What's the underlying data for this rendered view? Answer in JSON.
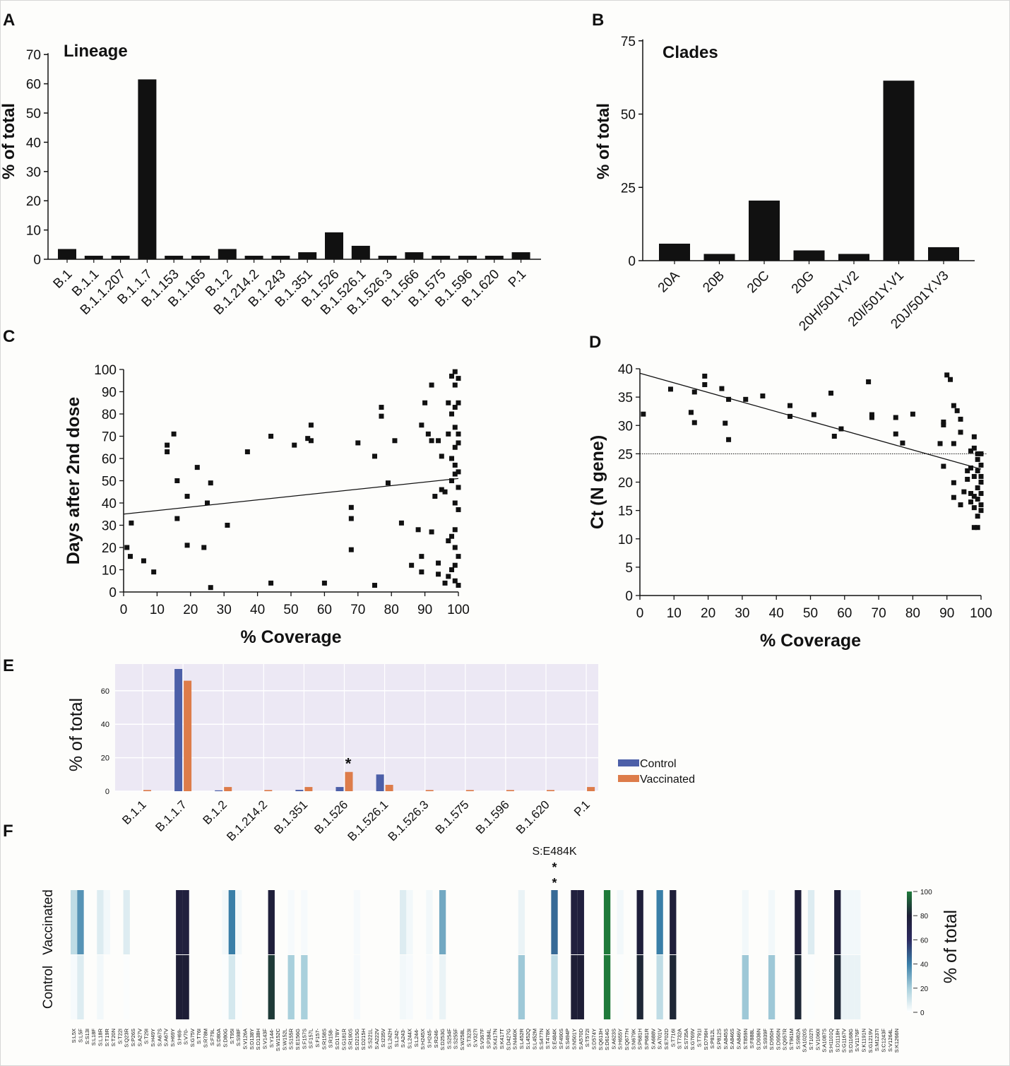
{
  "panels": {
    "a": "A",
    "b": "B",
    "c": "C",
    "d": "D",
    "e": "E",
    "f": "F"
  },
  "chart_data": [
    {
      "id": "A",
      "type": "bar",
      "title": "Lineage",
      "ylabel": "% of total",
      "xlabel": "",
      "ylim": [
        0,
        70
      ],
      "yticks": [
        0,
        10,
        20,
        30,
        40,
        50,
        60,
        70
      ],
      "grid": false,
      "categories": [
        "B.1",
        "B.1.1",
        "B.1.1.207",
        "B.1.1.7",
        "B.1.153",
        "B.1.165",
        "B.1.2",
        "B.1.214.2",
        "B.1.243",
        "B.1.351",
        "B.1.526",
        "B.1.526.1",
        "B.1.526.3",
        "B.1.566",
        "B.1.575",
        "B.1.596",
        "B.1.620",
        "P.1"
      ],
      "values": [
        3.5,
        1.2,
        1.2,
        61.5,
        1.2,
        1.2,
        3.5,
        1.2,
        1.2,
        2.4,
        9.2,
        4.6,
        1.2,
        2.4,
        1.2,
        1.2,
        1.2,
        2.4
      ],
      "color": "#111111"
    },
    {
      "id": "B",
      "type": "bar",
      "title": "Clades",
      "ylabel": "% of total",
      "xlabel": "",
      "ylim": [
        0,
        75
      ],
      "yticks": [
        0,
        25,
        50,
        75
      ],
      "grid": false,
      "categories": [
        "20A",
        "20B",
        "20C",
        "20G",
        "20H/501Y.V2",
        "20I/501Y.V1",
        "20J/501Y.V3"
      ],
      "values": [
        5.8,
        2.3,
        20.5,
        3.5,
        2.3,
        61.4,
        4.6
      ],
      "color": "#111111"
    },
    {
      "id": "C",
      "type": "scatter",
      "xlabel": "% Coverage",
      "ylabel": "Days after 2nd dose",
      "xlim": [
        0,
        100
      ],
      "ylim": [
        0,
        100
      ],
      "xticks": [
        0,
        10,
        20,
        30,
        40,
        50,
        60,
        70,
        80,
        90,
        100
      ],
      "yticks": [
        0,
        10,
        20,
        30,
        40,
        50,
        60,
        70,
        80,
        90,
        100
      ],
      "trendline": [
        [
          0,
          35
        ],
        [
          100,
          51
        ]
      ],
      "points": [
        [
          1,
          20
        ],
        [
          2,
          16
        ],
        [
          2.3,
          31
        ],
        [
          6,
          14
        ],
        [
          9,
          9
        ],
        [
          13,
          66
        ],
        [
          13,
          63
        ],
        [
          15,
          71
        ],
        [
          16,
          50
        ],
        [
          16,
          33
        ],
        [
          19,
          43
        ],
        [
          19,
          21
        ],
        [
          22,
          56
        ],
        [
          24,
          20
        ],
        [
          25,
          40
        ],
        [
          26,
          49
        ],
        [
          26,
          2
        ],
        [
          31,
          30
        ],
        [
          37,
          63
        ],
        [
          44,
          70
        ],
        [
          44,
          4
        ],
        [
          51,
          66
        ],
        [
          55,
          69
        ],
        [
          56,
          75
        ],
        [
          56,
          68
        ],
        [
          60,
          4
        ],
        [
          68,
          33
        ],
        [
          68,
          38
        ],
        [
          68,
          19
        ],
        [
          70,
          67
        ],
        [
          75,
          61
        ],
        [
          75,
          3
        ],
        [
          77,
          83
        ],
        [
          77,
          79
        ],
        [
          79,
          49
        ],
        [
          81,
          68
        ],
        [
          83,
          31
        ],
        [
          86,
          12
        ],
        [
          88,
          28
        ],
        [
          89,
          75
        ],
        [
          89,
          16
        ],
        [
          89,
          9
        ],
        [
          90,
          85
        ],
        [
          91,
          71
        ],
        [
          92,
          68
        ],
        [
          92,
          27
        ],
        [
          92,
          93
        ],
        [
          93,
          43
        ],
        [
          94,
          8
        ],
        [
          94,
          68
        ],
        [
          94,
          13
        ],
        [
          95,
          46
        ],
        [
          95,
          61
        ],
        [
          96,
          45
        ],
        [
          96,
          4
        ],
        [
          97,
          85
        ],
        [
          97,
          71
        ],
        [
          97,
          23
        ],
        [
          97,
          7
        ],
        [
          98,
          97
        ],
        [
          98,
          80
        ],
        [
          98,
          60
        ],
        [
          98,
          50
        ],
        [
          98,
          25
        ],
        [
          98,
          10
        ],
        [
          99,
          99
        ],
        [
          99,
          93
        ],
        [
          99,
          83
        ],
        [
          99,
          74
        ],
        [
          99,
          65
        ],
        [
          99,
          57
        ],
        [
          99,
          53
        ],
        [
          99,
          40
        ],
        [
          99,
          28
        ],
        [
          99,
          20
        ],
        [
          99,
          12
        ],
        [
          99,
          5
        ],
        [
          100,
          96
        ],
        [
          100,
          85
        ],
        [
          100,
          71
        ],
        [
          100,
          67
        ],
        [
          100,
          54
        ],
        [
          100,
          47
        ],
        [
          100,
          37
        ],
        [
          100,
          16
        ],
        [
          100,
          3
        ]
      ]
    },
    {
      "id": "D",
      "type": "scatter",
      "xlabel": "% Coverage",
      "ylabel": "Ct (N gene)",
      "xlim": [
        0,
        100
      ],
      "ylim": [
        0,
        40
      ],
      "xticks": [
        0,
        10,
        20,
        30,
        40,
        50,
        60,
        70,
        80,
        90,
        100
      ],
      "yticks": [
        0,
        5,
        10,
        15,
        20,
        25,
        30,
        35,
        40
      ],
      "trendline": [
        [
          0,
          39.2
        ],
        [
          100,
          22.3
        ]
      ],
      "reference_line": 25,
      "points": [
        [
          1,
          32
        ],
        [
          9,
          36.4
        ],
        [
          15,
          32.3
        ],
        [
          16,
          30.5
        ],
        [
          16,
          35.9
        ],
        [
          19,
          38.7
        ],
        [
          19,
          37.2
        ],
        [
          24,
          36.5
        ],
        [
          25,
          30.4
        ],
        [
          26,
          34.6
        ],
        [
          26,
          27.5
        ],
        [
          31,
          34.6
        ],
        [
          36,
          35.2
        ],
        [
          44,
          33.5
        ],
        [
          44,
          31.6
        ],
        [
          51,
          31.9
        ],
        [
          56,
          35.7
        ],
        [
          57,
          28.1
        ],
        [
          59,
          29.4
        ],
        [
          67,
          37.7
        ],
        [
          68,
          31.9
        ],
        [
          68,
          31.4
        ],
        [
          75,
          31.4
        ],
        [
          75,
          28.5
        ],
        [
          77,
          26.9
        ],
        [
          80,
          32
        ],
        [
          88,
          26.8
        ],
        [
          89,
          30.6
        ],
        [
          89,
          30.1
        ],
        [
          89,
          22.8
        ],
        [
          90,
          38.9
        ],
        [
          91,
          38.1
        ],
        [
          92,
          26.8
        ],
        [
          92,
          19.9
        ],
        [
          92,
          17.3
        ],
        [
          92,
          33.5
        ],
        [
          93,
          32.6
        ],
        [
          94,
          28.8
        ],
        [
          94,
          16
        ],
        [
          94,
          31.1
        ],
        [
          95,
          18.3
        ],
        [
          96,
          22
        ],
        [
          96,
          20.5
        ],
        [
          97,
          25.5
        ],
        [
          97,
          22.5
        ],
        [
          97,
          18
        ],
        [
          97,
          16.5
        ],
        [
          98,
          28
        ],
        [
          98,
          26
        ],
        [
          98,
          21
        ],
        [
          98,
          17.5
        ],
        [
          98,
          15.5
        ],
        [
          98,
          12
        ],
        [
          99,
          25
        ],
        [
          99,
          24
        ],
        [
          99,
          22
        ],
        [
          99,
          19
        ],
        [
          99,
          17
        ],
        [
          99,
          14
        ],
        [
          99,
          12
        ],
        [
          100,
          25
        ],
        [
          100,
          23
        ],
        [
          100,
          21
        ],
        [
          100,
          20
        ],
        [
          100,
          18
        ],
        [
          100,
          16
        ],
        [
          100,
          15
        ]
      ]
    },
    {
      "id": "E",
      "type": "bar",
      "ylabel": "% of total",
      "xlabel": "",
      "ylim": [
        0,
        75
      ],
      "yticks": [
        0,
        20,
        40,
        60
      ],
      "grid": true,
      "legend": "right",
      "categories": [
        "B.1.1",
        "B.1.1.7",
        "B.1.2",
        "B.1.214.2",
        "B.1.351",
        "B.1.526",
        "B.1.526.1",
        "B.1.526.3",
        "B.1.575",
        "B.1.596",
        "B.1.620",
        "P.1"
      ],
      "series": [
        {
          "name": "Control",
          "color": "#4c5fa8",
          "values": [
            0,
            73,
            0.5,
            0,
            0.8,
            2.5,
            10,
            0,
            0,
            0,
            0,
            0
          ]
        },
        {
          "name": "Vaccinated",
          "color": "#dd7c4a",
          "values": [
            0.7,
            66,
            2.5,
            0.7,
            2.5,
            11.5,
            3.8,
            0.7,
            0.7,
            0.7,
            0.7,
            2.5
          ]
        }
      ],
      "annotations": [
        {
          "category": "B.1.526",
          "text": "*"
        }
      ]
    },
    {
      "id": "F",
      "type": "heatmap",
      "rows": [
        "Vaccinated",
        "Control"
      ],
      "colorbar": {
        "label": "% of total",
        "ticks": [
          0,
          20,
          40,
          60,
          80,
          100
        ],
        "colors": [
          "#ffffff",
          "#a9d0dc",
          "#3a7fa8",
          "#2c2a60",
          "#1e1e36",
          "#1f7a3a"
        ]
      },
      "annotation": {
        "column": "S:E484K",
        "label": "S:E484K",
        "marks": "**"
      },
      "columns": [
        "S:L5X",
        "S:L5F",
        "S:S13I",
        "S:L18F",
        "S:L18R",
        "S:T19R",
        "S:T20N",
        "S:T22I",
        "S:Q23R",
        "S:P26S",
        "S:A27V",
        "S:T29I",
        "S:H49Y",
        "S:A67S",
        "S:A67V",
        "S:H69Y",
        "S:H69-",
        "S:V70-",
        "S:G75V",
        "S:T76I",
        "S:R78M",
        "S:F79L",
        "S:D80A",
        "S:D80G",
        "S:T95I",
        "S:S98F",
        "S:V126A",
        "S:D138Y",
        "S:D138H",
        "S:V143F",
        "S:Y144-",
        "S:W152C",
        "S:W152L",
        "S:S155R",
        "S:E156G",
        "S:F157S",
        "S:F157L",
        "S:F157-",
        "S:R158S",
        "S:R158-",
        "S:D178Y",
        "S:G181R",
        "S:R190S",
        "S:D215G",
        "S:D215H",
        "S:S221L",
        "S:A222V",
        "S:I235V",
        "S:L242H",
        "S:L242-",
        "S:A243-",
        "S:L244X",
        "S:L244-",
        "S:H245X",
        "S:H245-",
        "S:R246-",
        "S:D253G",
        "S:S254F",
        "S:S255F",
        "S:W258L",
        "S:T323I",
        "S:V327I",
        "S:V367F",
        "S:P384L",
        "S:K417N",
        "S:K417T",
        "S:D427G",
        "S:N440K",
        "S:L452R",
        "S:L452Q",
        "S:L452M",
        "S:S477N",
        "S:T478K",
        "S:E484K",
        "S:F490S",
        "S:S494P",
        "S:N501Y",
        "S:A570D",
        "S:T572I",
        "S:D574Y",
        "S:Q613H",
        "S:D614G",
        "S:A623S",
        "S:H655Y",
        "S:Q677H",
        "S:N679K",
        "S:P681H",
        "S:P681R",
        "S:A688V",
        "S:A701V",
        "S:E702D",
        "S:T716I",
        "S:T732A",
        "S:S735A",
        "S:G769V",
        "S:T791I",
        "S:D796H",
        "S:P812L",
        "S:P812S",
        "S:A845S",
        "S:A846S",
        "S:A846V",
        "S:T859N",
        "S:F888L",
        "S:D936N",
        "S:S939F",
        "S:D950H",
        "S:D950N",
        "S:Q957R",
        "S:T961M",
        "S:S982A",
        "S:A1020S",
        "S:T1027I",
        "S:V1060I",
        "S:A1087S",
        "S:H1101Q",
        "S:D1118H",
        "S:G1167V",
        "S:D1168G",
        "S:V1176F",
        "S:K1191N",
        "S:G1219V",
        "S:M1237I",
        "S:C1243F",
        "S:V1264L",
        "S:K1266N"
      ],
      "values": {
        "S:L5X": [
          15,
          2
        ],
        "S:L5F": [
          35,
          8
        ],
        "S:L18R": [
          8,
          3
        ],
        "S:T19R": [
          3,
          0
        ],
        "S:Q23R": [
          8,
          1
        ],
        "S:H69-": [
          76,
          80
        ],
        "S:V70-": [
          76,
          80
        ],
        "S:D80G": [
          3,
          1
        ],
        "S:T95I": [
          40,
          10
        ],
        "S:S98F": [
          3,
          1
        ],
        "S:Y144-": [
          78,
          86
        ],
        "S:S155R": [
          2,
          20
        ],
        "S:F157S": [
          2,
          20
        ],
        "S:D215G": [
          2,
          2
        ],
        "S:A243-": [
          8,
          3
        ],
        "S:L244X": [
          3,
          2
        ],
        "S:H245-": [
          3,
          2
        ],
        "S:D253G": [
          30,
          5
        ],
        "S:L452R": [
          5,
          22
        ],
        "S:E484K": [
          45,
          15
        ],
        "S:N501Y": [
          76,
          80
        ],
        "S:A570D": [
          76,
          80
        ],
        "S:D614G": [
          100,
          100
        ],
        "S:H655Y": [
          3,
          1
        ],
        "S:P681H": [
          78,
          82
        ],
        "S:A701V": [
          40,
          15
        ],
        "S:T716I": [
          78,
          82
        ],
        "S:T859N": [
          3,
          22
        ],
        "S:D950H": [
          3,
          22
        ],
        "S:S982A": [
          78,
          82
        ],
        "S:T1027I": [
          8,
          1
        ],
        "S:D1118H": [
          78,
          82
        ],
        "S:G1167V": [
          3,
          5
        ],
        "S:D1168G": [
          3,
          5
        ],
        "S:V1176F": [
          3,
          5
        ]
      }
    }
  ]
}
